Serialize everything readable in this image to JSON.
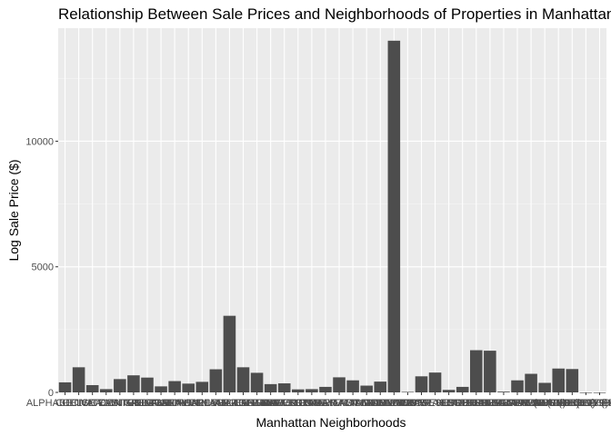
{
  "chart_data": {
    "type": "bar",
    "title": "Relationship Between Sale Prices and Neighborhoods of Properties in Manhattan",
    "xlabel": "Manhattan Neighborhoods",
    "ylabel": "Log Sale Price ($)",
    "ylim": [
      0,
      14500
    ],
    "yticks": [
      0,
      5000,
      10000
    ],
    "ytick_labels": [
      "0",
      "5000",
      "10000"
    ],
    "grid": true,
    "categories": [
      "ALPHABET CITY",
      "CHELSEA",
      "CHINATOWN",
      "CIVIC CENTER",
      "CLINTON",
      "EAST VILLAGE",
      "FASHION",
      "FINANCIAL",
      "FLATIRON",
      "GRAMERCY",
      "GREENWICH VILLAGE-CENTRAL",
      "GREENWICH VILLAGE-WEST",
      "HARLEM-CENTRAL",
      "HARLEM-EAST",
      "HARLEM-UPPER",
      "HARLEM-WEST",
      "INWOOD",
      "JAVITS CENTER",
      "KIPS BAY",
      "LITTLE ITALY",
      "LOWER EAST SIDE",
      "MANHATTAN VALLEY",
      "MANHATTAN-UNKNOWN",
      "MIDTOWN CBD",
      "MIDTOWN EAST",
      "MIDTOWN WEST",
      "MORNINGSIDE HEIGHTS",
      "MURRAY HILL",
      "ROOSEVELT ISLAND",
      "SOHO",
      "SOUTHBRIDGE",
      "TRIBECA",
      "UPPER EAST SIDE (59-79)",
      "UPPER EAST SIDE (79-96)",
      "UPPER EAST SIDE (96-110)",
      "UPPER WEST SIDE (59-79)",
      "UPPER WEST SIDE (79-96)",
      "UPPER WEST SIDE (96-116)",
      "WASHINGTON HEIGHTS LOWER",
      "WASHINGTON HEIGHTS UPPER"
    ],
    "values": [
      400,
      1000,
      290,
      130,
      530,
      680,
      590,
      240,
      450,
      350,
      420,
      920,
      3050,
      1000,
      780,
      330,
      360,
      120,
      130,
      220,
      600,
      480,
      270,
      430,
      14000,
      20,
      640,
      790,
      100,
      220,
      1680,
      1660,
      30,
      480,
      740,
      380,
      950,
      930,
      0,
      0
    ]
  }
}
